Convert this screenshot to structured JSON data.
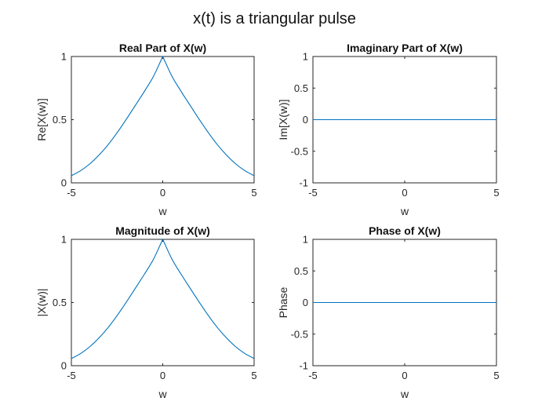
{
  "figure": {
    "suptitle": "x(t) is a triangular pulse",
    "line_color": "#0072BD",
    "axis_color": "#262626"
  },
  "chart_data": [
    {
      "id": "real",
      "type": "line",
      "title": "Real Part of X(w)",
      "xlabel": "w",
      "ylabel": "Re[X(w)]",
      "xlim": [
        -5,
        5
      ],
      "ylim": [
        0,
        1
      ],
      "xticks": [
        -5,
        0,
        5
      ],
      "yticks": [
        0,
        0.5,
        1
      ],
      "ytick_labels": [
        "0",
        "0.5",
        "1"
      ],
      "series": [
        {
          "name": "Re[X(w)]",
          "x": [
            -5,
            -4.5,
            -4,
            -3.5,
            -3,
            -2.5,
            -2,
            -1.5,
            -1,
            -0.5,
            0,
            0.5,
            1,
            1.5,
            2,
            2.5,
            3,
            3.5,
            4,
            4.5,
            5
          ],
          "y": [
            0.057,
            0.096,
            0.149,
            0.218,
            0.3,
            0.396,
            0.502,
            0.613,
            0.725,
            0.845,
            1.0,
            0.845,
            0.725,
            0.613,
            0.502,
            0.396,
            0.3,
            0.218,
            0.149,
            0.096,
            0.057
          ]
        }
      ]
    },
    {
      "id": "imag",
      "type": "line",
      "title": "Imaginary Part of X(w)",
      "xlabel": "w",
      "ylabel": "Im[X(w)]",
      "xlim": [
        -5,
        5
      ],
      "ylim": [
        -1,
        1
      ],
      "xticks": [
        -5,
        0,
        5
      ],
      "yticks": [
        -1,
        -0.5,
        0,
        0.5,
        1
      ],
      "ytick_labels": [
        "-1",
        "-0.5",
        "0",
        "0.5",
        "1"
      ],
      "series": [
        {
          "name": "Im[X(w)]",
          "x": [
            -5,
            5
          ],
          "y": [
            0,
            0
          ]
        }
      ]
    },
    {
      "id": "mag",
      "type": "line",
      "title": "Magnitude of X(w)",
      "xlabel": "w",
      "ylabel": "|X(w)|",
      "xlim": [
        -5,
        5
      ],
      "ylim": [
        0,
        1
      ],
      "xticks": [
        -5,
        0,
        5
      ],
      "yticks": [
        0,
        0.5,
        1
      ],
      "ytick_labels": [
        "0",
        "0.5",
        "1"
      ],
      "series": [
        {
          "name": "|X(w)|",
          "x": [
            -5,
            -4.5,
            -4,
            -3.5,
            -3,
            -2.5,
            -2,
            -1.5,
            -1,
            -0.5,
            0,
            0.5,
            1,
            1.5,
            2,
            2.5,
            3,
            3.5,
            4,
            4.5,
            5
          ],
          "y": [
            0.057,
            0.096,
            0.149,
            0.218,
            0.3,
            0.396,
            0.502,
            0.613,
            0.725,
            0.845,
            1.0,
            0.845,
            0.725,
            0.613,
            0.502,
            0.396,
            0.3,
            0.218,
            0.149,
            0.096,
            0.057
          ]
        }
      ]
    },
    {
      "id": "phase",
      "type": "line",
      "title": "Phase of X(w)",
      "xlabel": "w",
      "ylabel": "Phase",
      "xlim": [
        -5,
        5
      ],
      "ylim": [
        -1,
        1
      ],
      "xticks": [
        -5,
        0,
        5
      ],
      "yticks": [
        -1,
        -0.5,
        0,
        0.5,
        1
      ],
      "ytick_labels": [
        "-1",
        "-0.5",
        "0",
        "0.5",
        "1"
      ],
      "series": [
        {
          "name": "Phase",
          "x": [
            -5,
            5
          ],
          "y": [
            0,
            0
          ]
        }
      ]
    }
  ]
}
